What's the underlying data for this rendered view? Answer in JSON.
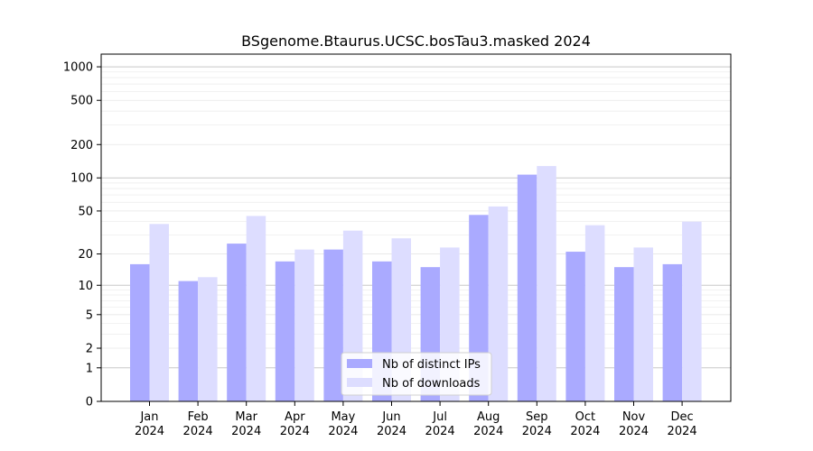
{
  "chart_data": {
    "type": "bar",
    "title": "BSgenome.Btaurus.UCSC.bosTau3.masked 2024",
    "xlabel": "",
    "ylabel": "",
    "scale": "log1p",
    "categories": [
      [
        "Jan",
        "2024"
      ],
      [
        "Feb",
        "2024"
      ],
      [
        "Mar",
        "2024"
      ],
      [
        "Apr",
        "2024"
      ],
      [
        "May",
        "2024"
      ],
      [
        "Jun",
        "2024"
      ],
      [
        "Jul",
        "2024"
      ],
      [
        "Aug",
        "2024"
      ],
      [
        "Sep",
        "2024"
      ],
      [
        "Oct",
        "2024"
      ],
      [
        "Nov",
        "2024"
      ],
      [
        "Dec",
        "2024"
      ]
    ],
    "series": [
      {
        "name": "Nb of distinct IPs",
        "color": "#aaaaff",
        "values": [
          16,
          11,
          25,
          17,
          22,
          17,
          15,
          46,
          107,
          21,
          15,
          16
        ]
      },
      {
        "name": "Nb of downloads",
        "color": "#ddddff",
        "values": [
          38,
          12,
          45,
          22,
          33,
          28,
          23,
          55,
          128,
          37,
          23,
          40
        ]
      }
    ],
    "yticks": [
      0,
      1,
      2,
      5,
      10,
      20,
      50,
      100,
      200,
      500,
      1000
    ],
    "ylim": [
      0,
      1300
    ],
    "grid": true,
    "legend": "bottom-center"
  }
}
